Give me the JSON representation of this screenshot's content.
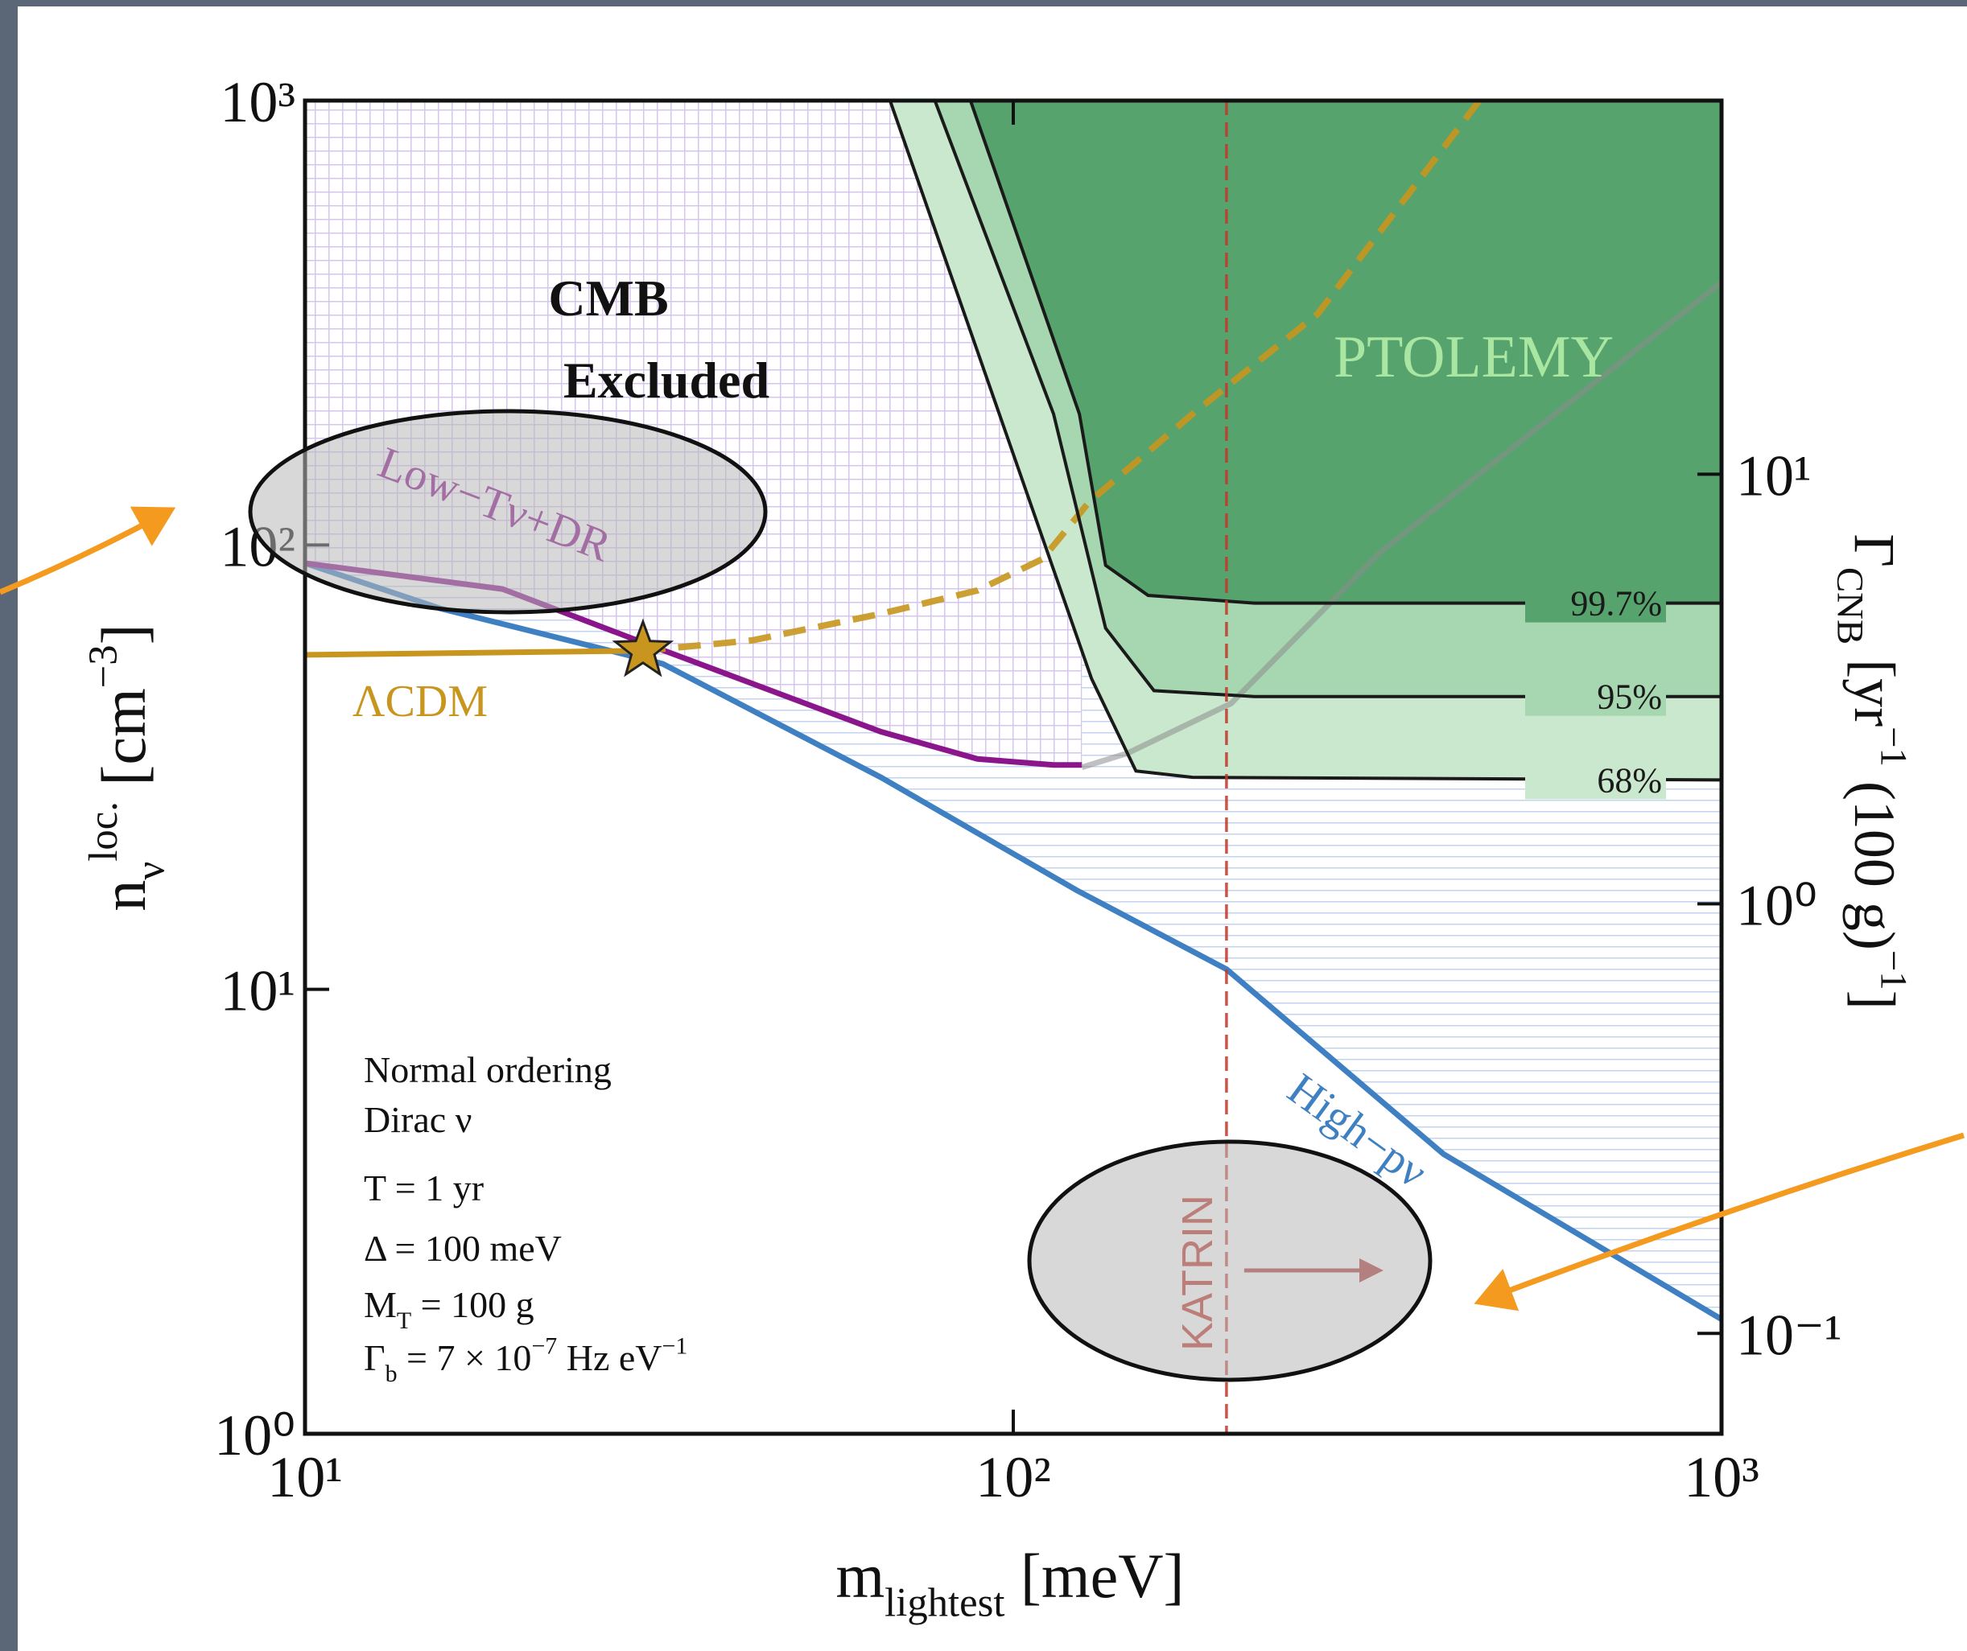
{
  "chart_data": {
    "type": "line",
    "xlabel": [
      "m",
      {
        "sub": "lightest"
      },
      " [meV]"
    ],
    "ylabel": [
      "n",
      {
        "sub": "ν"
      },
      {
        "sup": "loc."
      },
      " [cm",
      {
        "sup": "−3"
      },
      "]"
    ],
    "y2label": [
      "Γ",
      {
        "sub": "CNB"
      },
      " [yr",
      {
        "sup": "−1"
      },
      " (100 g)",
      {
        "sup": "−1"
      },
      "]"
    ],
    "xscale": "log",
    "yscale": "log",
    "xlim": [
      10,
      1000
    ],
    "ylim": [
      1,
      1000
    ],
    "y2lim": [
      0.0584,
      74.1
    ],
    "xticks": [
      {
        "value": 10,
        "label": "10¹"
      },
      {
        "value": 100,
        "label": "10²"
      },
      {
        "value": 1000,
        "label": "10³"
      }
    ],
    "yticks": [
      {
        "value": 1,
        "label": "10⁰"
      },
      {
        "value": 10,
        "label": "10¹"
      },
      {
        "value": 100,
        "label": "10²"
      },
      {
        "value": 1000,
        "label": "10³"
      }
    ],
    "y2ticks": [
      {
        "value": 0.1,
        "label": "10⁻¹"
      },
      {
        "value": 1,
        "label": "10⁰"
      },
      {
        "value": 10,
        "label": "10¹"
      }
    ],
    "series": [
      {
        "name": "High−pν",
        "color": "#3f80c2",
        "x": [
          10,
          15.5,
          32,
          65,
          123,
          200,
          405,
          1000
        ],
        "values": [
          91,
          72,
          54,
          30,
          16.7,
          11.1,
          4.26,
          1.81
        ]
      },
      {
        "name": "Low−Tν+DR",
        "color": "#8b168b",
        "x": [
          10,
          19,
          32,
          65,
          89,
          114,
          125
        ],
        "values": [
          91,
          79.6,
          58,
          38,
          33,
          32,
          32
        ]
      },
      {
        "name": "ΛCDM",
        "color": "#c8961e",
        "x": [
          10,
          30
        ],
        "values": [
          56.6,
          57.8
        ]
      },
      {
        "color": "#c8961e",
        "dash": true,
        "x": [
          30,
          42.8,
          65,
          89,
          110,
          128,
          179,
          269,
          455
        ],
        "values": [
          57.8,
          61,
          70,
          79,
          93,
          125,
          197,
          331,
          1000
        ]
      },
      {
        "color": "#8c8c8c",
        "x": [
          125,
          145,
          203,
          329,
          1000
        ],
        "values": [
          31.6,
          34,
          44,
          96,
          390
        ]
      }
    ],
    "contours": [
      {
        "name": "68%",
        "fill": "#c9e8ce",
        "x": [
          67,
          129,
          149,
          179,
          1000
        ],
        "values": [
          1000,
          50,
          31,
          30,
          29.6
        ]
      },
      {
        "name": "95%",
        "fill": "#a6d7b0",
        "x": [
          77.5,
          114,
          135,
          158,
          219,
          1000
        ],
        "values": [
          1000,
          197,
          65,
          47,
          45.6,
          45.6
        ]
      },
      {
        "name": "99.7%",
        "fill": "#56a36e",
        "x": [
          87,
          124,
          135,
          155,
          219,
          1000
        ],
        "values": [
          1000,
          197,
          90,
          77,
          74,
          74
        ]
      }
    ],
    "star": {
      "x": 30,
      "y": 57.8,
      "color": "#c8961e"
    },
    "katrin": {
      "label": "KATRIN",
      "x": 200,
      "color": "#c0392b"
    },
    "cmb": [
      "CMB",
      "Excluded"
    ],
    "ptolemy": {
      "label": "PTOLEMY",
      "color": "#a8e6a2"
    },
    "notes": [
      [
        "Normal ordering"
      ],
      [
        "Dirac ν"
      ],
      [
        "T = 1 yr"
      ],
      [
        "Δ = 100 meV"
      ],
      [
        "M",
        {
          "sub": "T"
        },
        " = 100 g"
      ],
      [
        "Γ",
        {
          "sub": "b"
        },
        " = 7 × 10",
        {
          "sup": "−7"
        },
        " Hz eV",
        {
          "sup": "−1"
        }
      ]
    ]
  }
}
